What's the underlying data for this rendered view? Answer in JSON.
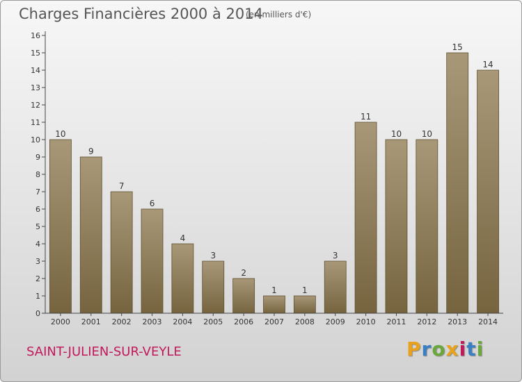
{
  "header": {
    "title": "Charges Financières 2000 à 2014",
    "subtitle": "(en milliers d'€)"
  },
  "footer": {
    "location": "SAINT-JULIEN-SUR-VEYLE",
    "brand": "Proxiti"
  },
  "colors": {
    "bar_top": "#a89878",
    "bar_bottom": "#76643f",
    "location_text": "#c2185b",
    "brand_letters": [
      "#e8a21c",
      "#3a7fc4",
      "#6aa83b",
      "#e8a21c",
      "#c2185b",
      "#3a7fc4",
      "#6aa83b"
    ]
  },
  "chart_data": {
    "type": "bar",
    "title": "Charges Financières 2000 à 2014",
    "subtitle": "(en milliers d'€)",
    "categories": [
      "2000",
      "2001",
      "2002",
      "2003",
      "2004",
      "2005",
      "2006",
      "2007",
      "2008",
      "2009",
      "2010",
      "2011",
      "2012",
      "2013",
      "2014"
    ],
    "values": [
      10,
      9,
      7,
      6,
      4,
      3,
      2,
      1,
      1,
      3,
      11,
      10,
      10,
      15,
      14
    ],
    "data_labels": [
      "10",
      "9",
      "7",
      "6",
      "4",
      "3",
      "2",
      "1",
      "1",
      "3",
      "11",
      "10",
      "10",
      "15",
      "14"
    ],
    "ylim": [
      0,
      16
    ],
    "yticks": [
      0,
      1,
      2,
      3,
      4,
      5,
      6,
      7,
      8,
      9,
      10,
      11,
      12,
      13,
      14,
      15,
      16
    ],
    "ytick_labels": [
      "0",
      "1",
      "2",
      "3",
      "4",
      "5",
      "6",
      "7",
      "8",
      "9",
      "10",
      "11",
      "12",
      "13",
      "14",
      "15",
      "16"
    ],
    "grid": false,
    "legend": "none"
  }
}
